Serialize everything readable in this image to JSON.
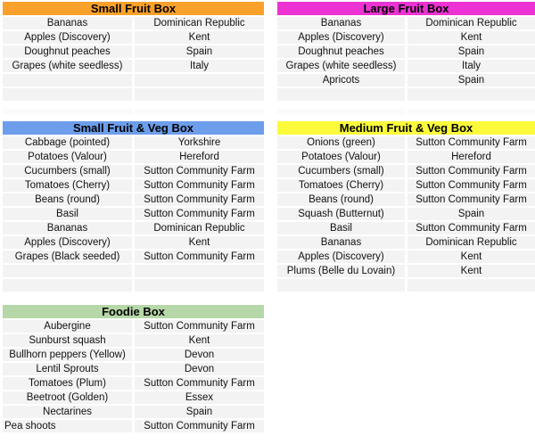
{
  "palette": {
    "page_background": "#FFFFFF",
    "row_background": "#F3F3F3",
    "ghost_row_background": "#FAFAFA",
    "header_text_color": "#000000",
    "cell_text_color": "#111111"
  },
  "tables": [
    {
      "id": "small-fruit-box",
      "title": "Small Fruit Box",
      "header_color": "#F9A12B",
      "rows": [
        {
          "item": "Bananas",
          "origin": "Dominican Republic"
        },
        {
          "item": "Apples (Discovery)",
          "origin": "Kent"
        },
        {
          "item": "Doughnut peaches",
          "origin": "Spain"
        },
        {
          "item": "Grapes (white seedless)",
          "origin": "Italy"
        },
        {
          "item": "",
          "origin": ""
        },
        {
          "item": "",
          "origin": ""
        }
      ]
    },
    {
      "id": "large-fruit-box",
      "title": "Large Fruit Box",
      "header_color": "#EC32D2",
      "rows": [
        {
          "item": "Bananas",
          "origin": "Dominican Republic"
        },
        {
          "item": "Apples (Discovery)",
          "origin": "Kent"
        },
        {
          "item": "Doughnut peaches",
          "origin": "Spain"
        },
        {
          "item": "Grapes (white seedless)",
          "origin": "Italy"
        },
        {
          "item": "Apricots",
          "origin": "Spain"
        },
        {
          "item": "",
          "origin": ""
        }
      ]
    },
    {
      "id": "small-fruit-veg-box",
      "title": "Small Fruit & Veg Box",
      "header_color": "#6D9EEB",
      "rows": [
        {
          "item": "Cabbage (pointed)",
          "origin": "Yorkshire"
        },
        {
          "item": "Potatoes (Valour)",
          "origin": "Hereford"
        },
        {
          "item": "Cucumbers (small)",
          "origin": "Sutton Community Farm"
        },
        {
          "item": "Tomatoes (Cherry)",
          "origin": "Sutton Community Farm"
        },
        {
          "item": "Beans (round)",
          "origin": "Sutton Community Farm"
        },
        {
          "item": "Basil",
          "origin": "Sutton Community Farm"
        },
        {
          "item": "Bananas",
          "origin": "Dominican Republic"
        },
        {
          "item": "Apples (Discovery)",
          "origin": "Kent"
        },
        {
          "item": "Grapes (Black seeded)",
          "origin": "Sutton Community Farm"
        },
        {
          "item": "",
          "origin": ""
        },
        {
          "item": "",
          "origin": ""
        }
      ]
    },
    {
      "id": "medium-fruit-veg-box",
      "title": "Medium Fruit & Veg Box",
      "header_color": "#FBFB3C",
      "rows": [
        {
          "item": "Onions (green)",
          "origin": "Sutton Community Farm"
        },
        {
          "item": "Potatoes (Valour)",
          "origin": "Hereford"
        },
        {
          "item": "Cucumbers (small)",
          "origin": "Sutton Community Farm"
        },
        {
          "item": "Tomatoes (Cherry)",
          "origin": "Sutton Community Farm"
        },
        {
          "item": "Beans (round)",
          "origin": "Sutton Community Farm"
        },
        {
          "item": "Squash (Butternut)",
          "origin": "Spain"
        },
        {
          "item": "Basil",
          "origin": "Sutton Community Farm"
        },
        {
          "item": "Bananas",
          "origin": "Dominican Republic"
        },
        {
          "item": "Apples (Discovery)",
          "origin": "Kent"
        },
        {
          "item": "Plums (Belle du Lovain)",
          "origin": "Kent"
        },
        {
          "item": "",
          "origin": ""
        }
      ]
    },
    {
      "id": "foodie-box",
      "title": "Foodie Box",
      "header_color": "#B6D7A8",
      "rows": [
        {
          "item": "Aubergine",
          "origin": "Sutton Community Farm"
        },
        {
          "item": "Sunburst squash",
          "origin": "Kent"
        },
        {
          "item": "Bullhorn peppers (Yellow)",
          "origin": "Devon"
        },
        {
          "item": "Lentil Sprouts",
          "origin": "Devon"
        },
        {
          "item": "Tomatoes (Plum)",
          "origin": "Sutton Community Farm"
        },
        {
          "item": "Beetroot (Golden)",
          "origin": "Essex"
        },
        {
          "item": "Nectarines",
          "origin": "Spain"
        },
        {
          "item": "Pea shoots",
          "origin": "Sutton Community Farm"
        }
      ]
    }
  ]
}
